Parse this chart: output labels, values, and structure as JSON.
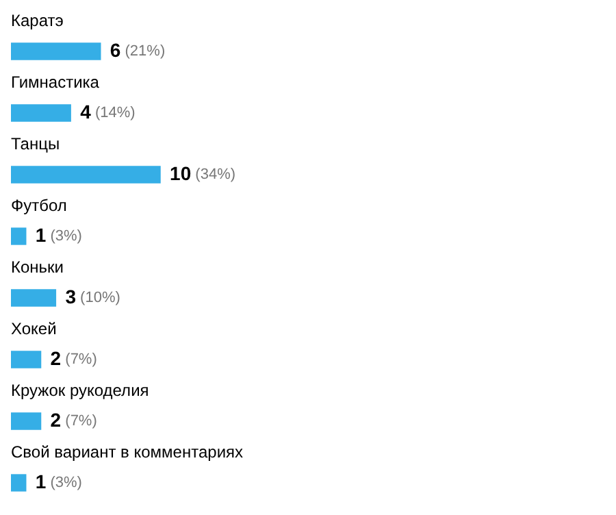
{
  "chart_data": {
    "type": "bar",
    "orientation": "horizontal",
    "categories": [
      "Каратэ",
      "Гимнастика",
      "Танцы",
      "Футбол",
      "Коньки",
      "Хокей",
      "Кружок рукоделия",
      "Свой вариант в комментариях"
    ],
    "values": [
      6,
      4,
      10,
      1,
      3,
      2,
      2,
      1
    ],
    "value_labels": [
      "6 (21%)",
      "4 (14%)",
      "10 (34%)",
      "1 (3%)",
      "3 (10%)",
      "2 (7%)",
      "2 (7%)",
      "1 (3%)"
    ],
    "color": "#35aee6"
  }
}
